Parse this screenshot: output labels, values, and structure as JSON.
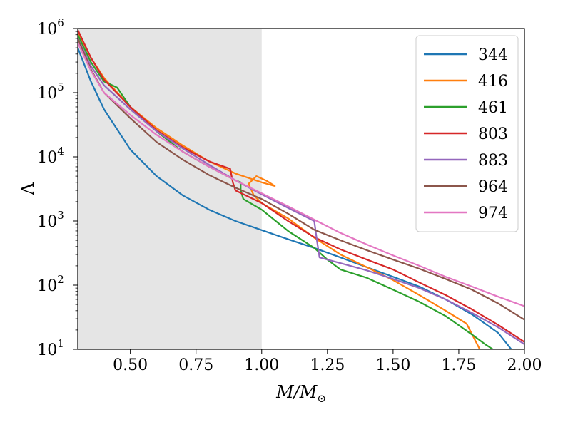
{
  "chart_data": {
    "type": "line",
    "title": "",
    "xlabel": "M/M⊙",
    "ylabel": "Λ",
    "xlim": [
      0.3,
      2.0
    ],
    "ylim": [
      10,
      1000000
    ],
    "yscale": "log",
    "grid": false,
    "legend_position": "top-right",
    "x_ticks": [
      0.5,
      0.75,
      1.0,
      1.25,
      1.5,
      1.75,
      2.0
    ],
    "x_tick_labels": [
      "0.50",
      "0.75",
      "1.00",
      "1.25",
      "1.50",
      "1.75",
      "2.00"
    ],
    "y_ticks": [
      10,
      100,
      1000,
      10000,
      100000,
      1000000
    ],
    "y_tick_labels": [
      {
        "base": "10",
        "exp": "1"
      },
      {
        "base": "10",
        "exp": "2"
      },
      {
        "base": "10",
        "exp": "3"
      },
      {
        "base": "10",
        "exp": "4"
      },
      {
        "base": "10",
        "exp": "5"
      },
      {
        "base": "10",
        "exp": "6"
      }
    ],
    "shaded_region": {
      "x_start": 0.3,
      "x_end": 1.0,
      "color": "#e5e5e5"
    },
    "series": [
      {
        "name": "344",
        "color": "#1f77b4",
        "points": [
          [
            0.3,
            500000
          ],
          [
            0.35,
            150000
          ],
          [
            0.4,
            55000
          ],
          [
            0.5,
            13000
          ],
          [
            0.6,
            5000
          ],
          [
            0.7,
            2500
          ],
          [
            0.8,
            1500
          ],
          [
            0.9,
            1000
          ],
          [
            1.0,
            720
          ],
          [
            1.1,
            520
          ],
          [
            1.2,
            380
          ],
          [
            1.3,
            270
          ],
          [
            1.4,
            190
          ],
          [
            1.5,
            135
          ],
          [
            1.6,
            95
          ],
          [
            1.7,
            60
          ],
          [
            1.8,
            35
          ],
          [
            1.9,
            18
          ],
          [
            1.95,
            10
          ]
        ]
      },
      {
        "name": "416",
        "color": "#ff7f0e",
        "points": [
          [
            0.3,
            900000
          ],
          [
            0.35,
            350000
          ],
          [
            0.4,
            170000
          ],
          [
            0.5,
            60000
          ],
          [
            0.6,
            28000
          ],
          [
            0.7,
            15000
          ],
          [
            0.8,
            8500
          ],
          [
            0.9,
            5500
          ],
          [
            1.0,
            4000
          ],
          [
            1.05,
            3500
          ],
          [
            1.02,
            4200
          ],
          [
            0.98,
            5000
          ],
          [
            0.95,
            3800
          ],
          [
            0.97,
            2500
          ],
          [
            1.0,
            1900
          ],
          [
            1.1,
            1100
          ],
          [
            1.2,
            550
          ],
          [
            1.3,
            300
          ],
          [
            1.4,
            190
          ],
          [
            1.5,
            120
          ],
          [
            1.6,
            70
          ],
          [
            1.7,
            40
          ],
          [
            1.78,
            25
          ],
          [
            1.82,
            12
          ],
          [
            1.83,
            10
          ]
        ]
      },
      {
        "name": "461",
        "color": "#2ca02c",
        "points": [
          [
            0.3,
            800000
          ],
          [
            0.35,
            300000
          ],
          [
            0.4,
            150000
          ],
          [
            0.45,
            120000
          ],
          [
            0.5,
            60000
          ],
          [
            0.6,
            25000
          ],
          [
            0.7,
            12000
          ],
          [
            0.8,
            7000
          ],
          [
            0.9,
            4300
          ],
          [
            0.92,
            4000
          ],
          [
            0.92,
            3000
          ],
          [
            0.93,
            2200
          ],
          [
            1.0,
            1500
          ],
          [
            1.1,
            700
          ],
          [
            1.2,
            380
          ],
          [
            1.25,
            250
          ],
          [
            1.3,
            175
          ],
          [
            1.4,
            130
          ],
          [
            1.5,
            85
          ],
          [
            1.6,
            55
          ],
          [
            1.7,
            33
          ],
          [
            1.8,
            17
          ],
          [
            1.85,
            12
          ],
          [
            1.88,
            10
          ]
        ]
      },
      {
        "name": "803",
        "color": "#d62728",
        "points": [
          [
            0.3,
            950000
          ],
          [
            0.35,
            350000
          ],
          [
            0.4,
            160000
          ],
          [
            0.5,
            60000
          ],
          [
            0.6,
            26000
          ],
          [
            0.7,
            14000
          ],
          [
            0.8,
            8500
          ],
          [
            0.88,
            6500
          ],
          [
            0.89,
            4000
          ],
          [
            0.9,
            3000
          ],
          [
            1.0,
            1900
          ],
          [
            1.1,
            1000
          ],
          [
            1.2,
            560
          ],
          [
            1.3,
            360
          ],
          [
            1.4,
            250
          ],
          [
            1.5,
            175
          ],
          [
            1.6,
            110
          ],
          [
            1.7,
            70
          ],
          [
            1.8,
            42
          ],
          [
            1.9,
            24
          ],
          [
            2.0,
            13
          ]
        ]
      },
      {
        "name": "883",
        "color": "#9467bd",
        "points": [
          [
            0.3,
            700000
          ],
          [
            0.35,
            260000
          ],
          [
            0.4,
            130000
          ],
          [
            0.5,
            55000
          ],
          [
            0.6,
            25000
          ],
          [
            0.7,
            13500
          ],
          [
            0.8,
            7500
          ],
          [
            0.9,
            4300
          ],
          [
            1.0,
            2600
          ],
          [
            1.1,
            1600
          ],
          [
            1.2,
            1000
          ],
          [
            1.21,
            500
          ],
          [
            1.22,
            270
          ],
          [
            1.3,
            220
          ],
          [
            1.4,
            170
          ],
          [
            1.5,
            125
          ],
          [
            1.6,
            90
          ],
          [
            1.7,
            60
          ],
          [
            1.8,
            37
          ],
          [
            1.9,
            22
          ],
          [
            2.0,
            12
          ]
        ]
      },
      {
        "name": "964",
        "color": "#8c564b",
        "points": [
          [
            0.3,
            700000
          ],
          [
            0.35,
            230000
          ],
          [
            0.4,
            100000
          ],
          [
            0.5,
            40000
          ],
          [
            0.6,
            17000
          ],
          [
            0.7,
            9000
          ],
          [
            0.8,
            5200
          ],
          [
            0.9,
            3300
          ],
          [
            1.0,
            2200
          ],
          [
            1.1,
            1300
          ],
          [
            1.2,
            730
          ],
          [
            1.3,
            500
          ],
          [
            1.4,
            350
          ],
          [
            1.5,
            250
          ],
          [
            1.6,
            180
          ],
          [
            1.7,
            125
          ],
          [
            1.8,
            85
          ],
          [
            1.9,
            52
          ],
          [
            2.0,
            29
          ]
        ]
      },
      {
        "name": "974",
        "color": "#e377c2",
        "points": [
          [
            0.3,
            600000
          ],
          [
            0.35,
            220000
          ],
          [
            0.4,
            100000
          ],
          [
            0.5,
            45000
          ],
          [
            0.6,
            22000
          ],
          [
            0.7,
            12000
          ],
          [
            0.8,
            7000
          ],
          [
            0.9,
            4300
          ],
          [
            1.0,
            2700
          ],
          [
            1.1,
            1700
          ],
          [
            1.2,
            1050
          ],
          [
            1.3,
            650
          ],
          [
            1.4,
            430
          ],
          [
            1.5,
            290
          ],
          [
            1.6,
            200
          ],
          [
            1.7,
            135
          ],
          [
            1.8,
            95
          ],
          [
            1.9,
            66
          ],
          [
            2.0,
            47
          ]
        ]
      }
    ]
  }
}
